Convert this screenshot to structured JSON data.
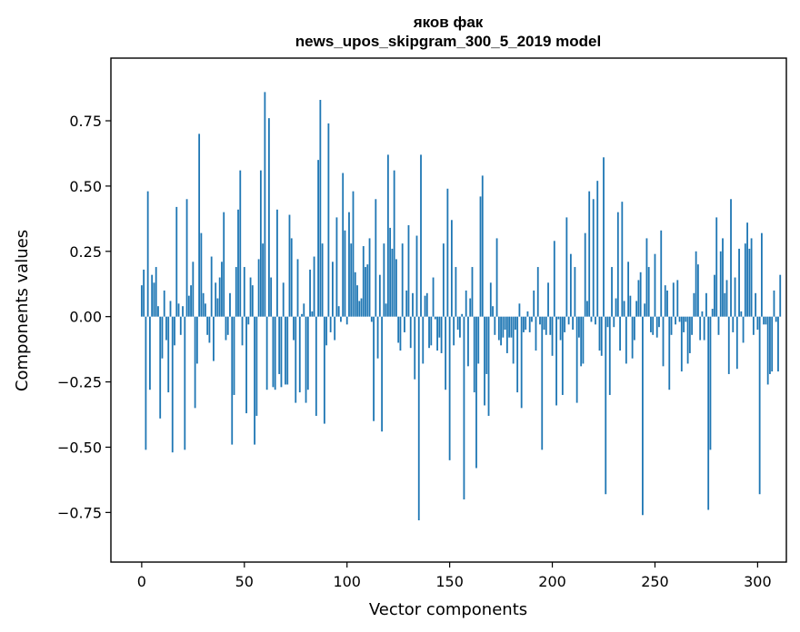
{
  "chart_data": {
    "type": "bar",
    "title_line1": "яков фак",
    "title_line2": "news_upos_skipgram_300_5_2019 model",
    "xlabel": "Vector components",
    "ylabel": "Components values",
    "xlim": [
      -15,
      314
    ],
    "ylim": [
      -0.94,
      0.99
    ],
    "xticks": [
      0,
      50,
      100,
      150,
      200,
      250,
      300
    ],
    "xtick_labels": [
      "0",
      "50",
      "100",
      "150",
      "200",
      "250",
      "300"
    ],
    "yticks": [
      0.75,
      0.5,
      0.25,
      0.0,
      -0.25,
      -0.5,
      -0.75
    ],
    "ytick_labels": [
      "0.75",
      "0.50",
      "0.25",
      "0.00",
      "−0.25",
      "−0.50",
      "−0.75"
    ],
    "bar_color": "#1f77b4",
    "values": [
      0.12,
      0.18,
      -0.51,
      0.48,
      -0.28,
      0.16,
      0.13,
      0.19,
      0.04,
      -0.39,
      -0.16,
      0.1,
      -0.09,
      -0.29,
      0.06,
      -0.52,
      -0.11,
      0.42,
      0.05,
      -0.07,
      0.04,
      -0.51,
      0.45,
      0.08,
      0.12,
      0.21,
      -0.35,
      -0.18,
      0.7,
      0.32,
      0.09,
      0.05,
      -0.07,
      -0.1,
      0.23,
      -0.17,
      0.13,
      0.07,
      0.15,
      0.21,
      0.4,
      -0.09,
      -0.07,
      0.09,
      -0.49,
      -0.3,
      0.19,
      0.41,
      0.56,
      -0.11,
      0.19,
      -0.37,
      -0.03,
      0.15,
      0.12,
      -0.49,
      -0.38,
      0.22,
      0.56,
      0.28,
      0.86,
      -0.28,
      0.76,
      0.15,
      -0.27,
      -0.28,
      0.41,
      -0.22,
      -0.27,
      0.13,
      -0.26,
      -0.26,
      0.39,
      0.3,
      -0.09,
      -0.33,
      0.22,
      -0.29,
      0.01,
      0.05,
      -0.33,
      -0.28,
      0.18,
      0.02,
      0.23,
      -0.38,
      0.6,
      0.83,
      0.28,
      -0.41,
      -0.11,
      0.74,
      -0.06,
      0.21,
      -0.09,
      0.38,
      0.04,
      -0.02,
      0.55,
      0.33,
      -0.03,
      0.4,
      0.28,
      0.48,
      0.17,
      0.12,
      0.06,
      0.07,
      0.27,
      0.19,
      0.2,
      0.3,
      -0.02,
      -0.4,
      0.45,
      -0.16,
      0.16,
      -0.44,
      0.28,
      0.05,
      0.62,
      0.34,
      0.26,
      0.56,
      0.22,
      -0.1,
      -0.13,
      0.28,
      -0.06,
      0.1,
      0.35,
      -0.12,
      0.09,
      -0.24,
      0.31,
      -0.78,
      0.62,
      -0.18,
      0.08,
      0.09,
      -0.12,
      -0.11,
      0.15,
      -0.01,
      -0.13,
      -0.08,
      -0.14,
      0.28,
      -0.28,
      0.49,
      -0.55,
      0.37,
      -0.11,
      0.19,
      -0.05,
      -0.08,
      0.01,
      -0.7,
      0.1,
      -0.19,
      0.07,
      0.19,
      -0.29,
      -0.58,
      -0.18,
      0.46,
      0.54,
      -0.34,
      -0.22,
      -0.38,
      0.13,
      0.04,
      -0.07,
      0.3,
      -0.09,
      -0.11,
      -0.08,
      -0.05,
      -0.14,
      -0.08,
      -0.08,
      -0.18,
      -0.05,
      -0.29,
      0.05,
      -0.35,
      -0.06,
      -0.05,
      0.02,
      -0.06,
      -0.02,
      0.1,
      -0.13,
      0.19,
      -0.03,
      -0.51,
      -0.05,
      -0.07,
      0.13,
      -0.07,
      -0.15,
      0.29,
      -0.34,
      -0.01,
      -0.09,
      -0.3,
      -0.06,
      0.38,
      -0.03,
      0.24,
      -0.05,
      0.19,
      -0.33,
      -0.08,
      -0.19,
      -0.18,
      0.32,
      0.06,
      0.48,
      -0.02,
      0.45,
      -0.03,
      0.52,
      -0.13,
      -0.15,
      0.61,
      -0.68,
      -0.04,
      -0.3,
      0.19,
      -0.04,
      0.07,
      0.4,
      -0.13,
      0.44,
      0.06,
      -0.18,
      0.21,
      0.08,
      -0.16,
      -0.09,
      0.06,
      0.14,
      0.17,
      -0.76,
      0.05,
      0.3,
      0.19,
      -0.06,
      -0.07,
      0.24,
      -0.08,
      -0.04,
      0.33,
      -0.19,
      0.12,
      0.1,
      -0.28,
      -0.07,
      0.13,
      -0.03,
      0.14,
      -0.02,
      -0.21,
      -0.06,
      -0.02,
      -0.18,
      -0.14,
      -0.07,
      0.09,
      0.25,
      0.2,
      -0.09,
      0.02,
      -0.09,
      0.09,
      -0.74,
      -0.51,
      0.03,
      0.16,
      0.38,
      -0.07,
      0.25,
      0.3,
      0.09,
      0.14,
      -0.22,
      0.45,
      -0.06,
      0.15,
      -0.2,
      0.26,
      0.02,
      -0.1,
      0.28,
      0.36,
      0.26,
      0.3,
      -0.07,
      0.09,
      -0.05,
      -0.68,
      0.32,
      -0.03,
      -0.03,
      -0.26,
      -0.22,
      -0.21,
      0.1,
      -0.02,
      -0.21,
      0.16
    ]
  }
}
